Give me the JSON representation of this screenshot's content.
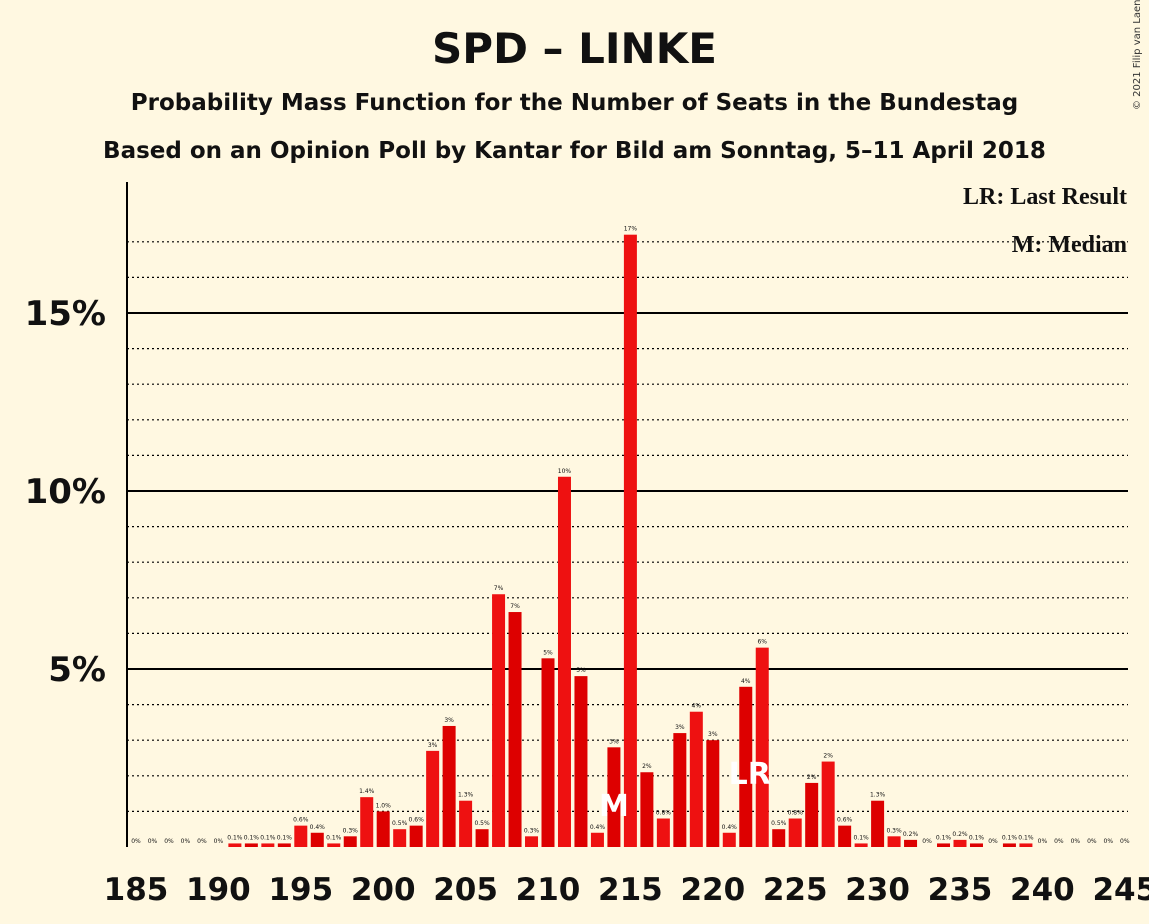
{
  "chart_data": {
    "type": "bar",
    "title": "SPD – LINKE",
    "subtitle": "Probability Mass Function for the Number of Seats in the Bundestag",
    "subtitle2": "Based on an Opinion Poll by Kantar for Bild am Sonntag, 5–11 April 2018",
    "copyright": "© 2021 Filip van Laenen",
    "legend": [
      "LR: Last Result",
      "M: Median"
    ],
    "xlim": [
      185,
      245
    ],
    "ylim": [
      0,
      18
    ],
    "x_ticks": [
      "185",
      "190",
      "195",
      "200",
      "205",
      "210",
      "215",
      "220",
      "225",
      "230",
      "235",
      "240",
      "245"
    ],
    "y_ticks": [
      {
        "value": 5,
        "label": "5%"
      },
      {
        "value": 10,
        "label": "10%"
      },
      {
        "value": 15,
        "label": "15%"
      }
    ],
    "median_seat": 214,
    "median_marker": "M",
    "last_result_seat": 222,
    "last_result_marker": "LR",
    "bars": [
      {
        "seat": 185,
        "value": 0,
        "label": "0%"
      },
      {
        "seat": 186,
        "value": 0,
        "label": "0%"
      },
      {
        "seat": 187,
        "value": 0,
        "label": "0%"
      },
      {
        "seat": 188,
        "value": 0,
        "label": "0%"
      },
      {
        "seat": 189,
        "value": 0,
        "label": "0%"
      },
      {
        "seat": 190,
        "value": 0,
        "label": "0%"
      },
      {
        "seat": 191,
        "value": 0.1,
        "label": "0.1%"
      },
      {
        "seat": 192,
        "value": 0.1,
        "label": "0.1%"
      },
      {
        "seat": 193,
        "value": 0.1,
        "label": "0.1%"
      },
      {
        "seat": 194,
        "value": 0.1,
        "label": "0.1%"
      },
      {
        "seat": 195,
        "value": 0.6,
        "label": "0.6%"
      },
      {
        "seat": 196,
        "value": 0.4,
        "label": "0.4%"
      },
      {
        "seat": 197,
        "value": 0.1,
        "label": "0.1%"
      },
      {
        "seat": 198,
        "value": 0.3,
        "label": "0.3%"
      },
      {
        "seat": 199,
        "value": 1.4,
        "label": "1.4%"
      },
      {
        "seat": 200,
        "value": 1.0,
        "label": "1.0%"
      },
      {
        "seat": 201,
        "value": 0.5,
        "label": "0.5%"
      },
      {
        "seat": 202,
        "value": 0.6,
        "label": "0.6%"
      },
      {
        "seat": 203,
        "value": 2.7,
        "label": "3%"
      },
      {
        "seat": 204,
        "value": 3.4,
        "label": "3%"
      },
      {
        "seat": 205,
        "value": 1.3,
        "label": "1.3%"
      },
      {
        "seat": 206,
        "value": 0.5,
        "label": "0.5%"
      },
      {
        "seat": 207,
        "value": 7.1,
        "label": "7%"
      },
      {
        "seat": 208,
        "value": 6.6,
        "label": "7%"
      },
      {
        "seat": 209,
        "value": 0.3,
        "label": "0.3%"
      },
      {
        "seat": 210,
        "value": 5.3,
        "label": "5%"
      },
      {
        "seat": 211,
        "value": 10.4,
        "label": "10%"
      },
      {
        "seat": 212,
        "value": 4.8,
        "label": "5%"
      },
      {
        "seat": 213,
        "value": 0.4,
        "label": "0.4%"
      },
      {
        "seat": 214,
        "value": 2.8,
        "label": "3%"
      },
      {
        "seat": 215,
        "value": 17.2,
        "label": "17%"
      },
      {
        "seat": 216,
        "value": 2.1,
        "label": "2%"
      },
      {
        "seat": 217,
        "value": 0.8,
        "label": "0.8%"
      },
      {
        "seat": 218,
        "value": 3.2,
        "label": "3%"
      },
      {
        "seat": 219,
        "value": 3.8,
        "label": "4%"
      },
      {
        "seat": 220,
        "value": 3.0,
        "label": "3%"
      },
      {
        "seat": 221,
        "value": 0.4,
        "label": "0.4%"
      },
      {
        "seat": 222,
        "value": 4.5,
        "label": "4%"
      },
      {
        "seat": 223,
        "value": 5.6,
        "label": "6%"
      },
      {
        "seat": 224,
        "value": 0.5,
        "label": "0.5%"
      },
      {
        "seat": 225,
        "value": 0.8,
        "label": "0.8%"
      },
      {
        "seat": 226,
        "value": 1.8,
        "label": "2%"
      },
      {
        "seat": 227,
        "value": 2.4,
        "label": "2%"
      },
      {
        "seat": 228,
        "value": 0.6,
        "label": "0.6%"
      },
      {
        "seat": 229,
        "value": 0.1,
        "label": "0.1%"
      },
      {
        "seat": 230,
        "value": 1.3,
        "label": "1.3%"
      },
      {
        "seat": 231,
        "value": 0.3,
        "label": "0.3%"
      },
      {
        "seat": 232,
        "value": 0.2,
        "label": "0.2%"
      },
      {
        "seat": 233,
        "value": 0,
        "label": "0%"
      },
      {
        "seat": 234,
        "value": 0.1,
        "label": "0.1%"
      },
      {
        "seat": 235,
        "value": 0.2,
        "label": "0.2%"
      },
      {
        "seat": 236,
        "value": 0.1,
        "label": "0.1%"
      },
      {
        "seat": 237,
        "value": 0,
        "label": "0%"
      },
      {
        "seat": 238,
        "value": 0.1,
        "label": "0.1%"
      },
      {
        "seat": 239,
        "value": 0.1,
        "label": "0.1%"
      },
      {
        "seat": 240,
        "value": 0,
        "label": "0%"
      },
      {
        "seat": 241,
        "value": 0,
        "label": "0%"
      },
      {
        "seat": 242,
        "value": 0,
        "label": "0%"
      },
      {
        "seat": 243,
        "value": 0,
        "label": "0%"
      },
      {
        "seat": 244,
        "value": 0,
        "label": "0%"
      },
      {
        "seat": 245,
        "value": 0,
        "label": "0%"
      }
    ]
  },
  "colors": {
    "background": "#FFF8E1",
    "bar_even": "#DD0000",
    "bar_odd": "#EE1111",
    "marker_text": "#FFFFFF",
    "axis": "#000000"
  }
}
